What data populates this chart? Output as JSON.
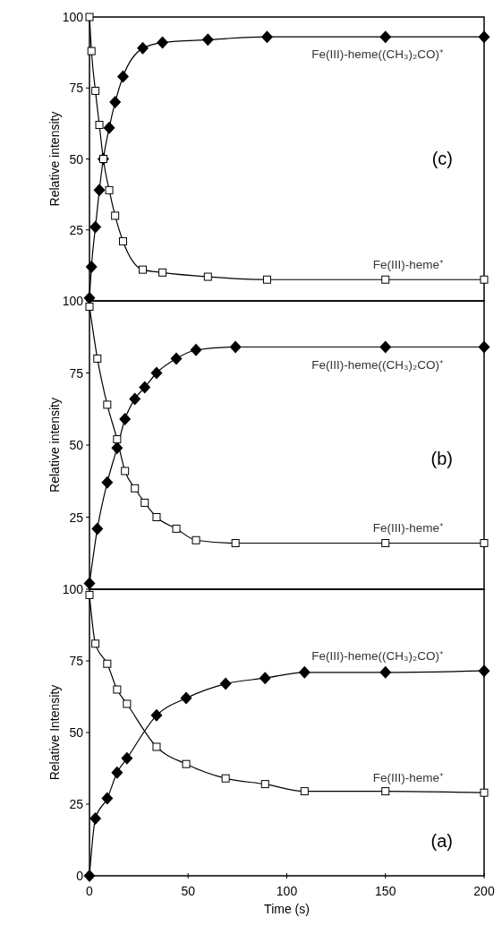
{
  "chart_data": [
    {
      "type": "line",
      "ylabel": "Relative intensity",
      "xlim": [
        0,
        200
      ],
      "ylim": [
        0,
        100
      ],
      "yticks": [
        25,
        50,
        75,
        100
      ],
      "tick_labels": "y",
      "grid": false,
      "annotations": [
        "(c)"
      ],
      "series": [
        {
          "name": "Fe(III)-heme((CH₃)₂CO)⁺",
          "color": "#000000",
          "marker": "diamond",
          "x": [
            0,
            1,
            3,
            5,
            7,
            10,
            13,
            17,
            27,
            37,
            60,
            90,
            150,
            200
          ],
          "values": [
            1,
            12,
            26,
            39,
            50,
            61,
            70,
            79,
            89,
            91,
            92,
            93,
            93,
            93
          ]
        },
        {
          "name": "Fe(III)-heme⁺",
          "color": "#000000",
          "marker": "square",
          "x": [
            0,
            1,
            3,
            5,
            7,
            10,
            13,
            17,
            27,
            37,
            60,
            90,
            150,
            200
          ],
          "values": [
            100,
            88,
            74,
            62,
            50,
            39,
            30,
            21,
            11,
            10,
            8.5,
            7.5,
            7.5,
            7.5
          ]
        }
      ]
    },
    {
      "type": "line",
      "ylabel": "Relative intensity",
      "xlim": [
        0,
        200
      ],
      "ylim": [
        0,
        100
      ],
      "yticks": [
        25,
        50,
        75,
        100
      ],
      "tick_labels": "y",
      "grid": false,
      "annotations": [
        "(b)"
      ],
      "series": [
        {
          "name": "Fe(III)-heme((CH₃)₂CO)⁺",
          "color": "#000000",
          "marker": "diamond",
          "x": [
            0,
            4,
            9,
            14,
            18,
            23,
            28,
            34,
            44,
            54,
            74,
            150,
            200
          ],
          "values": [
            2,
            21,
            37,
            49,
            59,
            66,
            70,
            75,
            80,
            83,
            84,
            84,
            84
          ]
        },
        {
          "name": "Fe(III)-heme⁺",
          "color": "#000000",
          "marker": "square",
          "x": [
            0,
            4,
            9,
            14,
            18,
            23,
            28,
            34,
            44,
            54,
            74,
            150,
            200
          ],
          "values": [
            98,
            80,
            64,
            52,
            41,
            35,
            30,
            25,
            21,
            17,
            16,
            16,
            16
          ]
        }
      ]
    },
    {
      "type": "line",
      "xlabel": "Time (s)",
      "ylabel": "Relative Intensity",
      "xlim": [
        0,
        200
      ],
      "xticks": [
        0,
        50,
        100,
        150,
        200
      ],
      "ylim": [
        0,
        100
      ],
      "yticks": [
        0,
        25,
        50,
        75,
        100
      ],
      "grid": false,
      "annotations": [
        "(a)"
      ],
      "series": [
        {
          "name": "Fe(III)-heme((CH₃)₂CO)⁺",
          "color": "#000000",
          "marker": "diamond",
          "x": [
            0,
            3,
            9,
            14,
            19,
            34,
            49,
            69,
            89,
            109,
            150,
            200
          ],
          "values": [
            0,
            20,
            27,
            36,
            41,
            56,
            62,
            67,
            69,
            71,
            71,
            71.5
          ]
        },
        {
          "name": "Fe(III)-heme⁺",
          "color": "#000000",
          "marker": "square",
          "x": [
            0,
            3,
            9,
            14,
            19,
            34,
            49,
            69,
            89,
            109,
            150,
            200
          ],
          "values": [
            98,
            81,
            74,
            65,
            60,
            45,
            39,
            34,
            32,
            29.5,
            29.5,
            29
          ]
        }
      ]
    }
  ]
}
